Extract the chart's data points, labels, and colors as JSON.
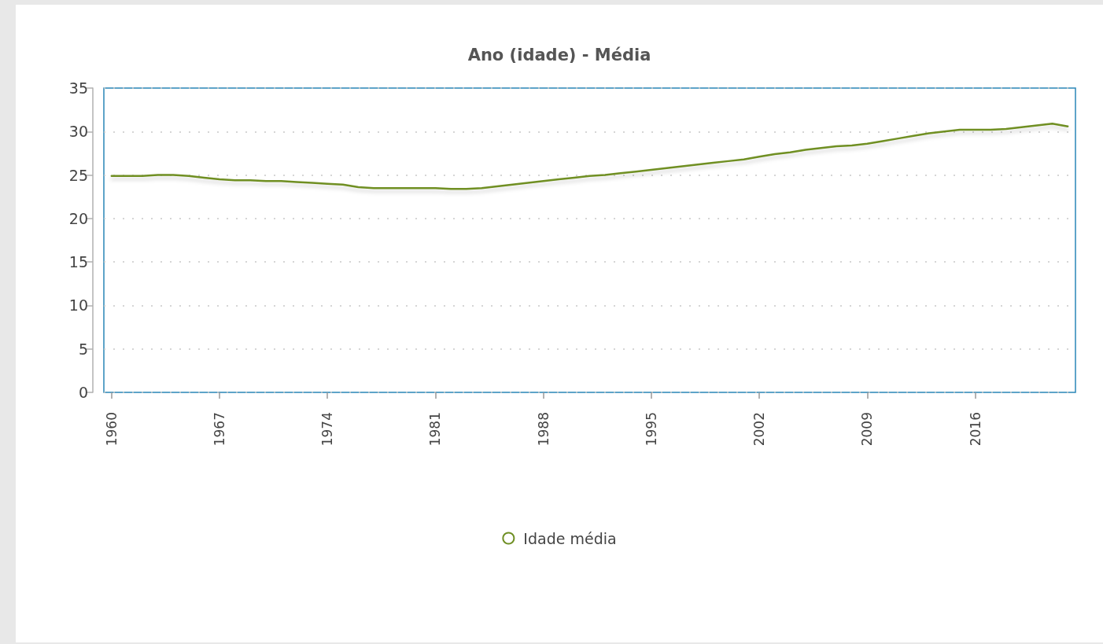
{
  "chart_data": {
    "type": "line",
    "title": "Ano (idade) - Média",
    "categories": [
      "1960",
      null,
      null,
      null,
      null,
      null,
      null,
      "1967",
      null,
      null,
      null,
      null,
      null,
      null,
      "1974",
      null,
      null,
      null,
      null,
      null,
      null,
      "1981",
      null,
      null,
      null,
      null,
      null,
      null,
      "1988",
      null,
      null,
      null,
      null,
      null,
      null,
      "1995",
      null,
      null,
      null,
      null,
      null,
      null,
      "2002",
      null,
      null,
      null,
      null,
      null,
      null,
      "2009",
      null,
      null,
      null,
      null,
      null,
      null,
      "2016",
      null,
      null,
      null,
      null,
      null,
      null
    ],
    "series": [
      {
        "name": "Idade média",
        "color": "#6f8f24",
        "values": [
          24.9,
          24.9,
          24.9,
          25.0,
          25.0,
          24.9,
          24.7,
          24.5,
          24.4,
          24.4,
          24.3,
          24.3,
          24.2,
          24.1,
          24.0,
          23.9,
          23.6,
          23.5,
          23.5,
          23.5,
          23.5,
          23.5,
          23.4,
          23.4,
          23.5,
          23.7,
          23.9,
          24.1,
          24.3,
          24.5,
          24.7,
          24.9,
          25.0,
          25.2,
          25.4,
          25.6,
          25.8,
          26.0,
          26.2,
          26.4,
          26.6,
          26.8,
          27.1,
          27.4,
          27.6,
          27.9,
          28.1,
          28.3,
          28.4,
          28.6,
          28.9,
          29.2,
          29.5,
          29.8,
          30.0,
          30.2,
          30.2,
          30.2,
          30.3,
          30.5,
          30.7,
          30.9,
          30.6
        ]
      }
    ],
    "ylim": [
      0,
      35
    ],
    "yticks": [
      0,
      5,
      10,
      15,
      20,
      25,
      30,
      35
    ],
    "grid": "y",
    "legend": "bottom",
    "marker": "none",
    "line_style": "solid"
  }
}
